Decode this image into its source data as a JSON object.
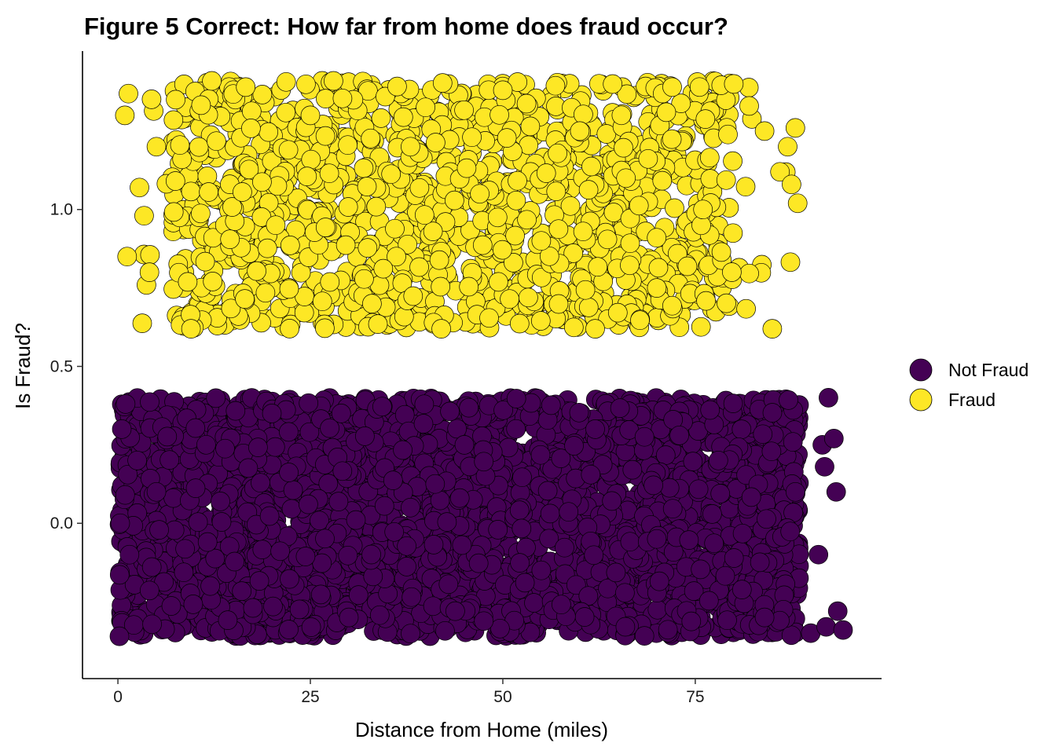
{
  "chart_data": {
    "type": "scatter",
    "title": "Figure 5 Correct: How far from home does fraud occur?",
    "xlabel": "Distance from Home (miles)",
    "ylabel": "Is Fraud?",
    "xlim": [
      -4.6,
      99.2
    ],
    "ylim": [
      -0.495,
      1.505
    ],
    "x_ticks": [
      0,
      25,
      50,
      75
    ],
    "x_tick_labels": [
      "0",
      "25",
      "50",
      "75"
    ],
    "y_ticks": [
      0.0,
      0.5,
      1.0
    ],
    "y_tick_labels": [
      "0.0",
      "0.5",
      "1.0"
    ],
    "grid": false,
    "legend_position": "right",
    "series": [
      {
        "name": "Not Fraud",
        "color": "#440154",
        "points": [
          [
            0.5,
            0.3
          ],
          [
            1.5,
            -0.1
          ],
          [
            2.5,
            0.2
          ],
          [
            0.2,
            -0.36
          ],
          [
            1.0,
            0.38
          ],
          [
            0.3,
            0.0
          ],
          [
            5,
            0.1
          ],
          [
            12,
            -0.2
          ],
          [
            20,
            0.35
          ],
          [
            30,
            -0.3
          ],
          [
            38,
            0.05
          ],
          [
            45,
            0.25
          ],
          [
            55,
            -0.15
          ],
          [
            62,
            0.3
          ],
          [
            70,
            -0.05
          ],
          [
            78,
            0.2
          ],
          [
            84,
            -0.3
          ],
          [
            88,
            0.1
          ],
          [
            90,
            -0.35
          ],
          [
            91.5,
            0.25
          ],
          [
            92.3,
            0.4
          ],
          [
            93.0,
            0.27
          ],
          [
            93.3,
            0.1
          ],
          [
            91.8,
            0.18
          ],
          [
            92.0,
            -0.33
          ],
          [
            94.2,
            -0.34
          ],
          [
            93.5,
            -0.28
          ],
          [
            91.0,
            -0.1
          ]
        ]
      },
      {
        "name": "Fraud",
        "color": "#FDE725",
        "points": [
          [
            0.9,
            1.3
          ],
          [
            1.2,
            0.85
          ],
          [
            2.8,
            1.07
          ],
          [
            3.4,
            0.98
          ],
          [
            4.1,
            0.8
          ],
          [
            5.0,
            1.2
          ],
          [
            7.5,
            1.35
          ],
          [
            9.5,
            0.62
          ],
          [
            12.2,
            1.41
          ],
          [
            16.6,
            1.39
          ],
          [
            20.5,
            0.95
          ],
          [
            25.0,
            1.3
          ],
          [
            28.0,
            1.41
          ],
          [
            33.0,
            0.7
          ],
          [
            38.0,
            1.2
          ],
          [
            42.0,
            0.62
          ],
          [
            47.0,
            1.05
          ],
          [
            50.0,
            1.38
          ],
          [
            55.0,
            0.9
          ],
          [
            60.0,
            1.25
          ],
          [
            62.0,
            0.62
          ],
          [
            66.0,
            1.1
          ],
          [
            70.0,
            0.75
          ],
          [
            72.0,
            1.39
          ],
          [
            76.0,
            1.0
          ],
          [
            80.0,
            1.4
          ],
          [
            82.0,
            1.33
          ],
          [
            84.0,
            1.25
          ],
          [
            85.0,
            0.62
          ],
          [
            86.0,
            1.12
          ],
          [
            87.0,
            1.2
          ],
          [
            88.0,
            1.26
          ],
          [
            87.5,
            1.08
          ],
          [
            88.3,
            1.02
          ]
        ]
      }
    ]
  }
}
